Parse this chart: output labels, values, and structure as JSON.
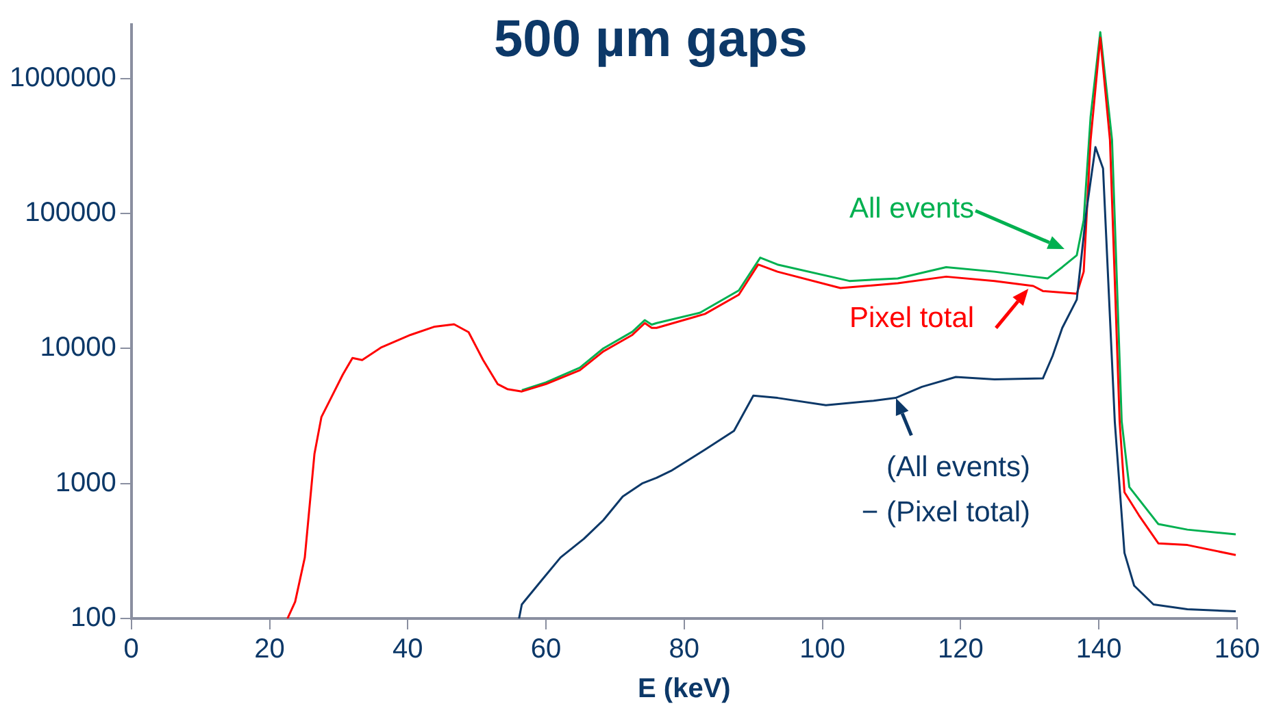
{
  "chart_data": {
    "type": "line",
    "title": "500 µm gaps",
    "xlabel": "E (keV)",
    "xlim": [
      0,
      160
    ],
    "xticks": [
      0,
      20,
      40,
      60,
      80,
      100,
      120,
      140,
      160
    ],
    "ylim": [
      100,
      2500000
    ],
    "yticks": [
      100,
      1000,
      10000,
      100000,
      1000000
    ],
    "log": "y",
    "annotations": [
      "All events",
      {
        "text": "Pixel total",
        "x": 129.8,
        "y": 27500
      },
      {
        "text": "(All events)\n− (Pixel total)",
        "x": 110.6,
        "y": 4300
      }
    ],
    "series": [
      {
        "color": "#00b050",
        "x": [
          56.5,
          60.0,
          64.9,
          68.3,
          72.5,
          74.3,
          75.3,
          76.0,
          82.3,
          87.9,
          91.0,
          93.5,
          103.9,
          110.9,
          117.9,
          124.9,
          130.5,
          132.6,
          134.7,
          136.8,
          137.8,
          138.8,
          140.2,
          141.9,
          143.3,
          144.4,
          148.6,
          152.8,
          159.8
        ],
        "values": [
          4900,
          5600,
          7200,
          10000,
          13300,
          16200,
          15000,
          15400,
          18400,
          26900,
          47000,
          41800,
          31600,
          33000,
          40000,
          37000,
          34000,
          33000,
          40000,
          49000,
          89000,
          520000,
          2200000,
          350000,
          2870,
          940,
          500,
          455,
          420
        ]
      },
      {
        "color": "#ff0000",
        "x": [
          22.6,
          23.7,
          25.1,
          26.5,
          27.5,
          28.9,
          30.6,
          32.0,
          33.4,
          36.2,
          40.4,
          43.9,
          46.7,
          48.8,
          50.9,
          53.0,
          54.4,
          56.5,
          60.0,
          64.9,
          68.3,
          72.5,
          74.3,
          75.3,
          76.0,
          83.0,
          87.9,
          90.7,
          93.5,
          102.6,
          110.9,
          117.9,
          124.9,
          130.5,
          131.9,
          136.8,
          137.8,
          138.8,
          140.2,
          141.6,
          143.0,
          143.7,
          145.8,
          148.6,
          152.8,
          159.8
        ],
        "values": [
          100,
          133,
          283,
          1660,
          3100,
          4300,
          6400,
          8500,
          8200,
          10200,
          12600,
          14500,
          15100,
          13200,
          8200,
          5450,
          5000,
          4800,
          5450,
          6900,
          9500,
          12600,
          15400,
          14200,
          14200,
          18000,
          25000,
          41800,
          37000,
          28000,
          30400,
          34000,
          31600,
          29000,
          26600,
          25400,
          37000,
          350000,
          2000000,
          350000,
          2870,
          860,
          580,
          360,
          350,
          295
        ]
      },
      {
        "color": "#0c3868",
        "x": [
          56.1,
          56.5,
          59.3,
          62.1,
          65.5,
          68.3,
          71.1,
          73.9,
          76.0,
          78.1,
          83.0,
          87.2,
          90.0,
          93.5,
          100.5,
          107.4,
          110.6,
          114.4,
          119.3,
          124.9,
          131.9,
          133.3,
          134.7,
          136.8,
          138.2,
          139.5,
          140.6,
          142.3,
          143.7,
          145.1,
          147.9,
          152.8,
          159.8
        ],
        "values": [
          100,
          127,
          190,
          283,
          390,
          535,
          800,
          1000,
          1100,
          1240,
          1780,
          2450,
          4470,
          4300,
          3800,
          4100,
          4300,
          5200,
          6150,
          5900,
          6000,
          8800,
          14200,
          23000,
          105000,
          310000,
          215000,
          2870,
          306,
          175,
          127,
          117,
          113
        ]
      }
    ]
  }
}
